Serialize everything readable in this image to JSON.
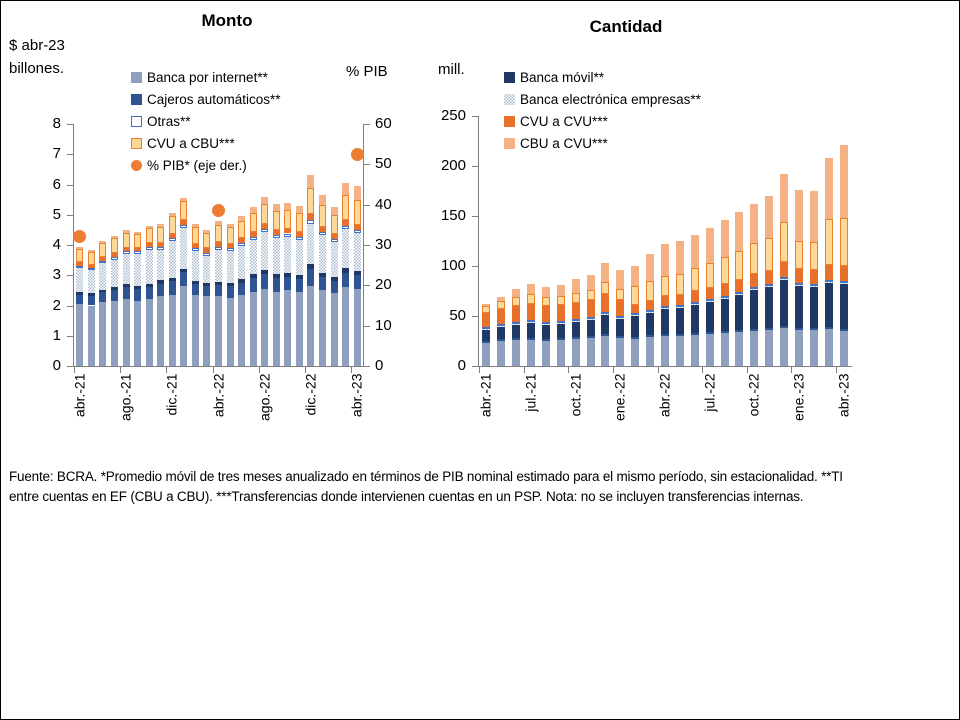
{
  "page": {
    "background": "#FFFFFF",
    "border_color": "#000000",
    "axis_color": "#7F7F7F"
  },
  "footer": {
    "text": "Fuente: BCRA. *Promedio móvil de tres meses anualizado en términos de PIB nominal estimado para el mismo período, sin estacionalidad. **TI entre cuentas en EF (CBU a CBU). ***Transferencias donde intervienen cuentas en un PSP. Nota: no se incluyen transferencias internas."
  },
  "chart_data": [
    {
      "id": "monto",
      "type": "bar",
      "subtype": "stacked-column-with-right-axis-dots",
      "title": "Monto",
      "y_left": {
        "label_line1": "$ abr-23",
        "label_line2": "billones.",
        "min": 0,
        "max": 8,
        "step": 1
      },
      "y_right": {
        "label": "% PIB",
        "min": 0,
        "max": 60,
        "step": 10
      },
      "x_tick_every": 4,
      "categories": [
        "abr.-21",
        "may.-21",
        "jun.-21",
        "jul.-21",
        "ago.-21",
        "sep.-21",
        "oct.-21",
        "nov.-21",
        "dic.-21",
        "ene.-22",
        "feb.-22",
        "mar.-22",
        "abr.-22",
        "may.-22",
        "jun.-22",
        "jul.-22",
        "ago.-22",
        "sep.-22",
        "oct.-22",
        "nov.-22",
        "dic.-22",
        "ene.-23",
        "feb.-23",
        "mar.-23",
        "abr.-23"
      ],
      "series": [
        {
          "key": "banca_internet",
          "name": "Banca por internet**",
          "style": "solid",
          "color": "#8EA0BE",
          "values": [
            2.05,
            2.0,
            2.1,
            2.15,
            2.2,
            2.15,
            2.2,
            2.3,
            2.35,
            2.65,
            2.35,
            2.3,
            2.3,
            2.25,
            2.35,
            2.45,
            2.55,
            2.45,
            2.5,
            2.45,
            2.65,
            2.5,
            2.4,
            2.6,
            2.55
          ]
        },
        {
          "key": "cajeros",
          "name": "Cajeros automáticos**",
          "style": "solid",
          "color": "#2E5491",
          "values": [
            0.3,
            0.32,
            0.33,
            0.36,
            0.4,
            0.4,
            0.4,
            0.42,
            0.45,
            0.45,
            0.35,
            0.35,
            0.38,
            0.38,
            0.4,
            0.45,
            0.48,
            0.45,
            0.45,
            0.43,
            0.55,
            0.45,
            0.42,
            0.48,
            0.45
          ]
        },
        {
          "key": "banca_movil",
          "name": "Banca móvil**",
          "style": "solid",
          "color": "#1F3864",
          "values": [
            0.08,
            0.08,
            0.09,
            0.09,
            0.1,
            0.1,
            0.1,
            0.11,
            0.12,
            0.12,
            0.1,
            0.1,
            0.11,
            0.11,
            0.12,
            0.13,
            0.14,
            0.13,
            0.13,
            0.13,
            0.16,
            0.14,
            0.13,
            0.15,
            0.14
          ]
        },
        {
          "key": "empresas",
          "name": "Banca electrónica empresas**",
          "style": "hatch",
          "color": "#AEBCD2",
          "values": [
            0.8,
            0.78,
            0.88,
            0.92,
            1.0,
            1.05,
            1.15,
            1.0,
            1.2,
            1.35,
            1.0,
            0.9,
            1.05,
            1.05,
            1.1,
            1.15,
            1.25,
            1.2,
            1.2,
            1.15,
            1.35,
            1.25,
            1.15,
            1.3,
            1.25
          ]
        },
        {
          "key": "otras",
          "name": "Otras**",
          "style": "outline",
          "color": "#FFFFFF",
          "border": "#4472C4",
          "values": [
            0.08,
            0.07,
            0.08,
            0.08,
            0.09,
            0.09,
            0.09,
            0.09,
            0.1,
            0.1,
            0.1,
            0.1,
            0.1,
            0.1,
            0.1,
            0.1,
            0.1,
            0.1,
            0.1,
            0.1,
            0.12,
            0.1,
            0.1,
            0.11,
            0.1
          ]
        },
        {
          "key": "cvu_cvu",
          "name": "CVU a CVU***",
          "style": "solid",
          "color": "#E8702A",
          "values": [
            0.12,
            0.1,
            0.12,
            0.12,
            0.12,
            0.12,
            0.12,
            0.14,
            0.15,
            0.15,
            0.14,
            0.14,
            0.15,
            0.15,
            0.15,
            0.15,
            0.16,
            0.16,
            0.16,
            0.16,
            0.2,
            0.17,
            0.16,
            0.18,
            0.17
          ]
        },
        {
          "key": "cvu_cbu",
          "name": "CVU a CBU***",
          "style": "outline",
          "color": "#FCD795",
          "border": "#E9822E",
          "values": [
            0.45,
            0.42,
            0.48,
            0.5,
            0.5,
            0.45,
            0.5,
            0.55,
            0.58,
            0.62,
            0.55,
            0.52,
            0.58,
            0.55,
            0.58,
            0.62,
            0.67,
            0.63,
            0.63,
            0.63,
            0.85,
            0.72,
            0.62,
            0.83,
            0.84
          ]
        },
        {
          "key": "cbu_cvu",
          "name": "CBU a CVU***",
          "style": "solid",
          "color": "#F4B183",
          "values": [
            0.05,
            0.05,
            0.06,
            0.07,
            0.07,
            0.07,
            0.08,
            0.08,
            0.1,
            0.11,
            0.09,
            0.09,
            0.12,
            0.12,
            0.15,
            0.2,
            0.25,
            0.23,
            0.23,
            0.25,
            0.45,
            0.32,
            0.27,
            0.4,
            0.45
          ]
        }
      ],
      "dot_series": {
        "key": "pib",
        "name": "% PIB* (eje der.)",
        "color": "#ED7D31",
        "axis": "right",
        "points": [
          {
            "category": "abr.-21",
            "value": 32
          },
          {
            "category": "abr.-22",
            "value": 38.5
          },
          {
            "category": "abr.-23",
            "value": 52.5
          }
        ]
      },
      "legend_keys": [
        "banca_internet",
        "cajeros",
        "otras",
        "cvu_cbu",
        "pib"
      ]
    },
    {
      "id": "cantidad",
      "type": "bar",
      "subtype": "stacked-column",
      "title": "Cantidad",
      "y_left": {
        "label": "mill.",
        "min": 0,
        "max": 250,
        "step": 50
      },
      "x_tick_every": 3,
      "categories": [
        "abr.-21",
        "may.-21",
        "jun.-21",
        "jul.-21",
        "ago.-21",
        "sep.-21",
        "oct.-21",
        "nov.-21",
        "dic.-21",
        "ene.-22",
        "feb.-22",
        "mar.-22",
        "abr.-22",
        "may.-22",
        "jun.-22",
        "jul.-22",
        "ago.-22",
        "sep.-22",
        "oct.-22",
        "nov.-22",
        "dic.-22",
        "ene.-23",
        "feb.-23",
        "mar.-23",
        "abr.-23"
      ],
      "series": [
        {
          "key": "banca_internet",
          "name": "Banca por internet**",
          "style": "solid",
          "color": "#8EA0BE",
          "values": [
            23,
            25,
            26,
            26,
            25,
            26,
            27,
            28,
            30,
            28,
            27,
            29,
            30,
            30,
            31,
            32,
            33,
            34,
            35,
            36,
            38,
            36,
            36,
            37,
            35
          ]
        },
        {
          "key": "cajeros",
          "name": "Cajeros automáticos**",
          "style": "solid",
          "color": "#2E5491",
          "values": [
            2,
            2,
            2,
            2,
            2,
            2,
            2,
            2,
            2,
            2,
            2,
            2,
            2,
            2,
            2,
            2,
            2,
            2,
            2,
            2,
            2,
            2,
            2,
            2,
            2
          ]
        },
        {
          "key": "banca_movil",
          "name": "Banca móvil**",
          "style": "solid",
          "color": "#1F3864",
          "values": [
            11,
            12,
            13,
            15,
            14,
            14,
            15,
            16,
            19,
            17,
            21,
            22,
            25,
            26,
            28,
            30,
            32,
            35,
            39,
            41,
            46,
            42,
            41,
            44,
            45
          ]
        },
        {
          "key": "empresas",
          "name": "Banca electrónica empresas**",
          "style": "hatch",
          "color": "#AEBCD2",
          "values": [
            1,
            1,
            1,
            1,
            1,
            1,
            1,
            1,
            1,
            1,
            1,
            1,
            1,
            1,
            1,
            1,
            1,
            1,
            1,
            1,
            1,
            1,
            1,
            1,
            1
          ]
        },
        {
          "key": "otras",
          "name": "Otras**",
          "style": "outline",
          "color": "#FFFFFF",
          "border": "#4472C4",
          "values": [
            2,
            2,
            2,
            2,
            2,
            2,
            2,
            2,
            2,
            2,
            2,
            2,
            2,
            2,
            2,
            2,
            2,
            2,
            2,
            2,
            2,
            2,
            2,
            2,
            2
          ]
        },
        {
          "key": "cvu_cvu",
          "name": "CVU a CVU***",
          "style": "solid",
          "color": "#E8702A",
          "values": [
            14,
            15,
            16,
            16,
            16,
            16,
            16,
            17,
            18,
            16,
            8,
            9,
            10,
            10,
            11,
            11,
            12,
            12,
            13,
            13,
            15,
            14,
            14,
            15,
            15
          ]
        },
        {
          "key": "cvu_cbu",
          "name": "CVU a CBU***",
          "style": "outline",
          "color": "#FCD795",
          "border": "#E9822E",
          "values": [
            7,
            8,
            9,
            10,
            9,
            9,
            10,
            10,
            12,
            11,
            19,
            20,
            20,
            21,
            23,
            25,
            27,
            29,
            31,
            33,
            40,
            28,
            28,
            46,
            48
          ]
        },
        {
          "key": "cbu_cvu",
          "name": "CBU a CVU***",
          "style": "solid",
          "color": "#F4B183",
          "values": [
            2,
            4,
            8,
            10,
            10,
            11,
            14,
            15,
            19,
            19,
            20,
            27,
            32,
            33,
            33,
            35,
            37,
            39,
            39,
            42,
            48,
            51,
            51,
            61,
            73
          ]
        }
      ],
      "legend_keys": [
        "banca_movil",
        "empresas",
        "cvu_cvu",
        "cbu_cvu"
      ]
    }
  ]
}
